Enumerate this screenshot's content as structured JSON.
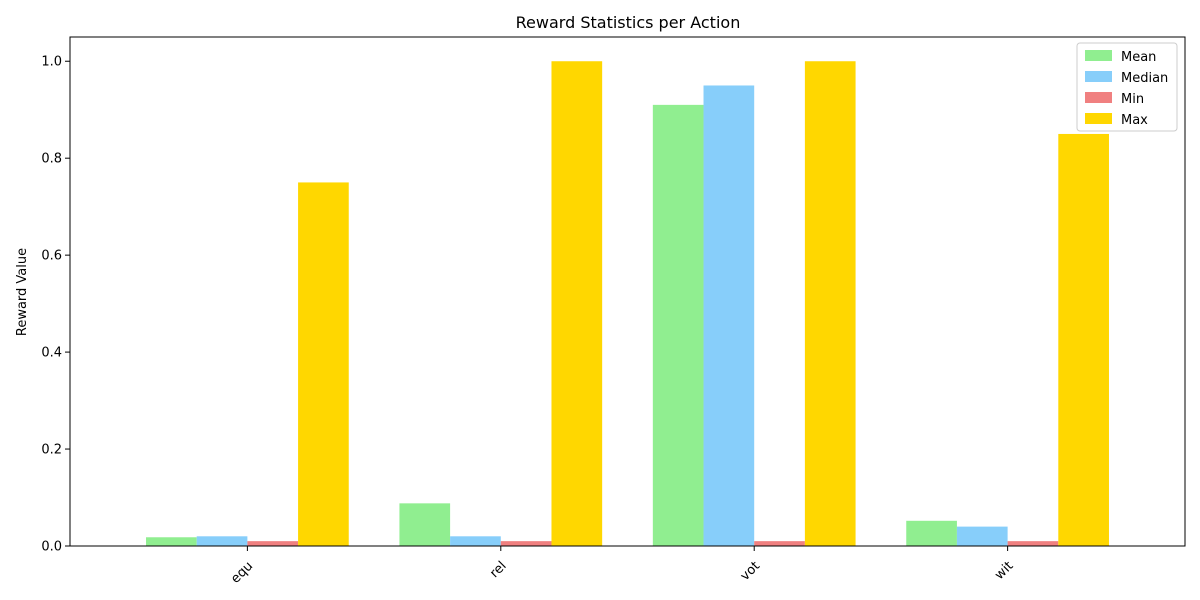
{
  "chart_data": {
    "type": "bar",
    "title": "Reward Statistics per Action",
    "xlabel": "",
    "ylabel": "Reward Value",
    "categories": [
      "equ",
      "rel",
      "vot",
      "wit"
    ],
    "series": [
      {
        "name": "Mean",
        "color": "#90ee90",
        "values": [
          0.018,
          0.088,
          0.91,
          0.052
        ]
      },
      {
        "name": "Median",
        "color": "#87cefa",
        "values": [
          0.02,
          0.02,
          0.95,
          0.04
        ]
      },
      {
        "name": "Min",
        "color": "#f08080",
        "values": [
          0.01,
          0.01,
          0.01,
          0.01
        ]
      },
      {
        "name": "Max",
        "color": "#ffd700",
        "values": [
          0.75,
          1.0,
          1.0,
          0.85
        ]
      }
    ],
    "ylim": [
      0,
      1.05
    ],
    "yticks": [
      "0.0",
      "0.2",
      "0.4",
      "0.6",
      "0.8",
      "1.0"
    ],
    "grid": false,
    "legend_position": "top-right",
    "xtick_rotation": "45"
  }
}
